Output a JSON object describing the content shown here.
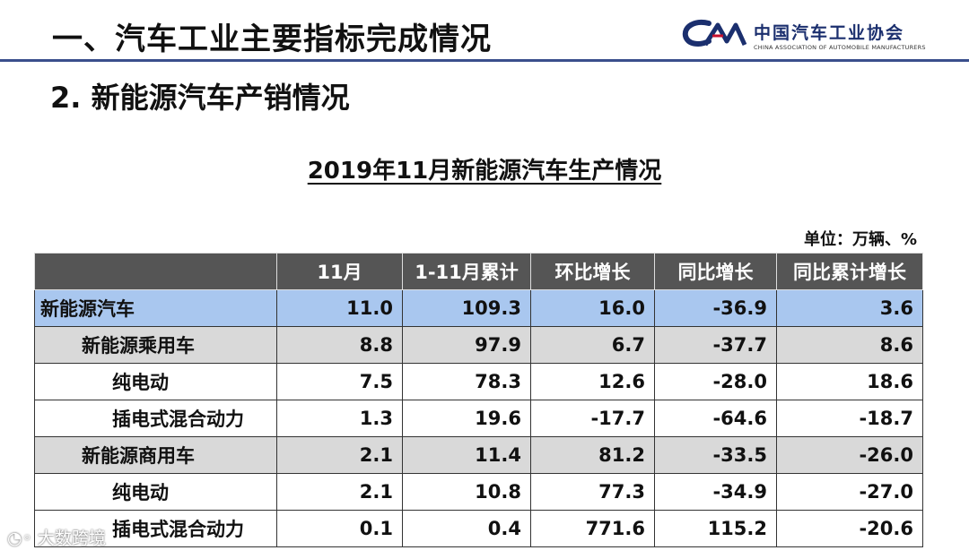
{
  "header": {
    "title": "一、汽车工业主要指标完成情况",
    "logo_name": "中国汽车工业协会",
    "logo_en": "CHINA ASSOCIATION OF AUTOMOBILE MANUFACTURERS",
    "logo_mark": "CAM"
  },
  "section": {
    "title": "2. 新能源汽车产销情况"
  },
  "table": {
    "title": "2019年11月新能源汽车生产情况",
    "unit": "单位：万辆、%",
    "headers": [
      "",
      "11月",
      "1-11月累计",
      "环比增长",
      "同比增长",
      "同比累计增长"
    ],
    "rows": [
      {
        "name": "新能源汽车",
        "values": [
          "11.0",
          "109.3",
          "16.0",
          "-36.9",
          "3.6"
        ]
      },
      {
        "name": "新能源乘用车",
        "values": [
          "8.8",
          "97.9",
          "6.7",
          "-37.7",
          "8.6"
        ]
      },
      {
        "name": "纯电动",
        "values": [
          "7.5",
          "78.3",
          "12.6",
          "-28.0",
          "18.6"
        ]
      },
      {
        "name": "插电式混合动力",
        "values": [
          "1.3",
          "19.6",
          "-17.7",
          "-64.6",
          "-18.7"
        ]
      },
      {
        "name": "新能源商用车",
        "values": [
          "2.1",
          "11.4",
          "81.2",
          "-33.5",
          "-26.0"
        ]
      },
      {
        "name": "纯电动",
        "values": [
          "2.1",
          "10.8",
          "77.3",
          "-34.9",
          "-27.0"
        ]
      },
      {
        "name": "插电式混合动力",
        "values": [
          "0.1",
          "0.4",
          "771.6",
          "115.2",
          "-20.6"
        ]
      }
    ]
  },
  "watermark": {
    "text": "大数跨境"
  },
  "colors": {
    "header_rule": "#3a4f8c",
    "table_header_bg": "#555555",
    "highlight_row": "#a9c7ef",
    "shade_row": "#d9d9d9",
    "logo_blue": "#1b2f6e"
  }
}
